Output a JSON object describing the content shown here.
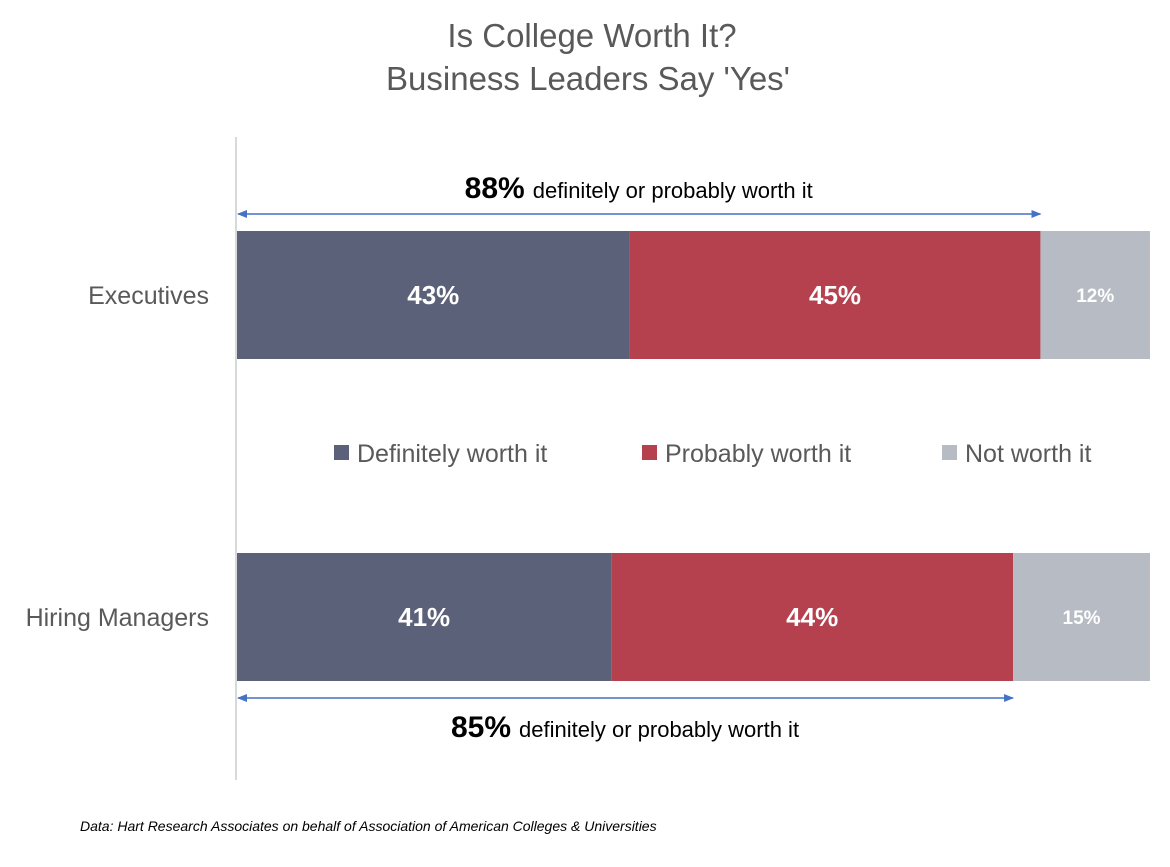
{
  "chart_data": {
    "type": "bar",
    "orientation": "horizontal",
    "stacked": true,
    "title": [
      "Is College Worth It?",
      "Business Leaders Say 'Yes'"
    ],
    "categories": [
      "Executives",
      "Hiring Managers"
    ],
    "series": [
      {
        "name": "Definitely worth it",
        "values": [
          43,
          41
        ],
        "labels": [
          "43%",
          "41%"
        ],
        "color": "#5b6178"
      },
      {
        "name": "Probably worth it",
        "values": [
          45,
          44
        ],
        "labels": [
          "45%",
          "44%"
        ],
        "color": "#b5404e"
      },
      {
        "name": "Not worth it",
        "values": [
          12,
          15
        ],
        "labels": [
          "12%",
          "15%"
        ],
        "color": "#b6bbc4"
      }
    ],
    "xlim": [
      0,
      100
    ],
    "grid": false,
    "legend_position": "middle",
    "annotations": [
      {
        "category": "Executives",
        "value": 88,
        "number": "88%",
        "text": "definitely or probably worth it"
      },
      {
        "category": "Hiring Managers",
        "value": 85,
        "number": "85%",
        "text": "definitely or probably worth it"
      }
    ],
    "arrow_color": "#4472c4",
    "source": "Data: Hart Research Associates on behalf of Association of American Colleges & Universities"
  }
}
